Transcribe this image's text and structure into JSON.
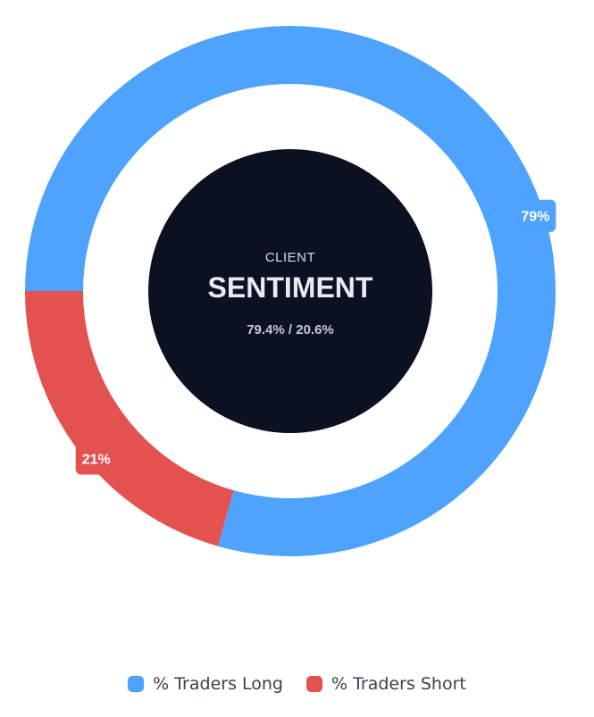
{
  "chart_data": {
    "type": "pie",
    "subtype": "donut",
    "categories": [
      "% Traders Long",
      "% Traders Short"
    ],
    "values": [
      79.4,
      20.6
    ],
    "data_labels": [
      "79%",
      "21%"
    ],
    "colors": [
      "#4da3fd",
      "#e4524f"
    ],
    "center": {
      "kicker": "CLIENT",
      "title": "SENTIMENT",
      "subtitle": "79.4% / 20.6%",
      "background": "#0b1120",
      "kicker_color": "#d6dbe6",
      "title_color": "#e8ebf2",
      "subtitle_color": "#c4cad6"
    },
    "legend": {
      "position": "bottom"
    }
  }
}
